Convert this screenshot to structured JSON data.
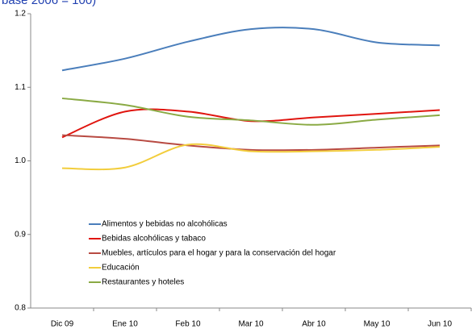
{
  "chart_data": {
    "type": "line",
    "title": "base 2006 = 100)",
    "categories": [
      "Dic 09",
      "Ene 10",
      "Feb 10",
      "Mar 10",
      "Abr 10",
      "May 10",
      "Jun 10"
    ],
    "series": [
      {
        "name": "Alimentos y bebidas no alcohólicas",
        "color": "#4a7ebb",
        "values": [
          1.123,
          1.139,
          1.162,
          1.179,
          1.179,
          1.161,
          1.157
        ]
      },
      {
        "name": "Bebidas alcohólicas y tabaco",
        "color": "#e0150f",
        "values": [
          1.032,
          1.067,
          1.067,
          1.054,
          1.059,
          1.064,
          1.069
        ]
      },
      {
        "name": "Muebles, artículos para el hogar y para la conservación del hogar",
        "color": "#b84a42",
        "values": [
          1.035,
          1.03,
          1.021,
          1.015,
          1.015,
          1.018,
          1.021
        ]
      },
      {
        "name": "Educación",
        "color": "#f2cd3c",
        "values": [
          0.99,
          0.991,
          1.022,
          1.013,
          1.013,
          1.015,
          1.019
        ]
      },
      {
        "name": "Restaurantes y hoteles",
        "color": "#8aaa44",
        "values": [
          1.085,
          1.076,
          1.06,
          1.055,
          1.049,
          1.056,
          1.062
        ]
      }
    ],
    "ylim": [
      0.8,
      1.2
    ],
    "yticks": [
      0.8,
      0.9,
      {
        "value": 1,
        "label": "1.0"
      },
      1.1,
      1.2
    ],
    "smooth": true,
    "legend": "left"
  }
}
